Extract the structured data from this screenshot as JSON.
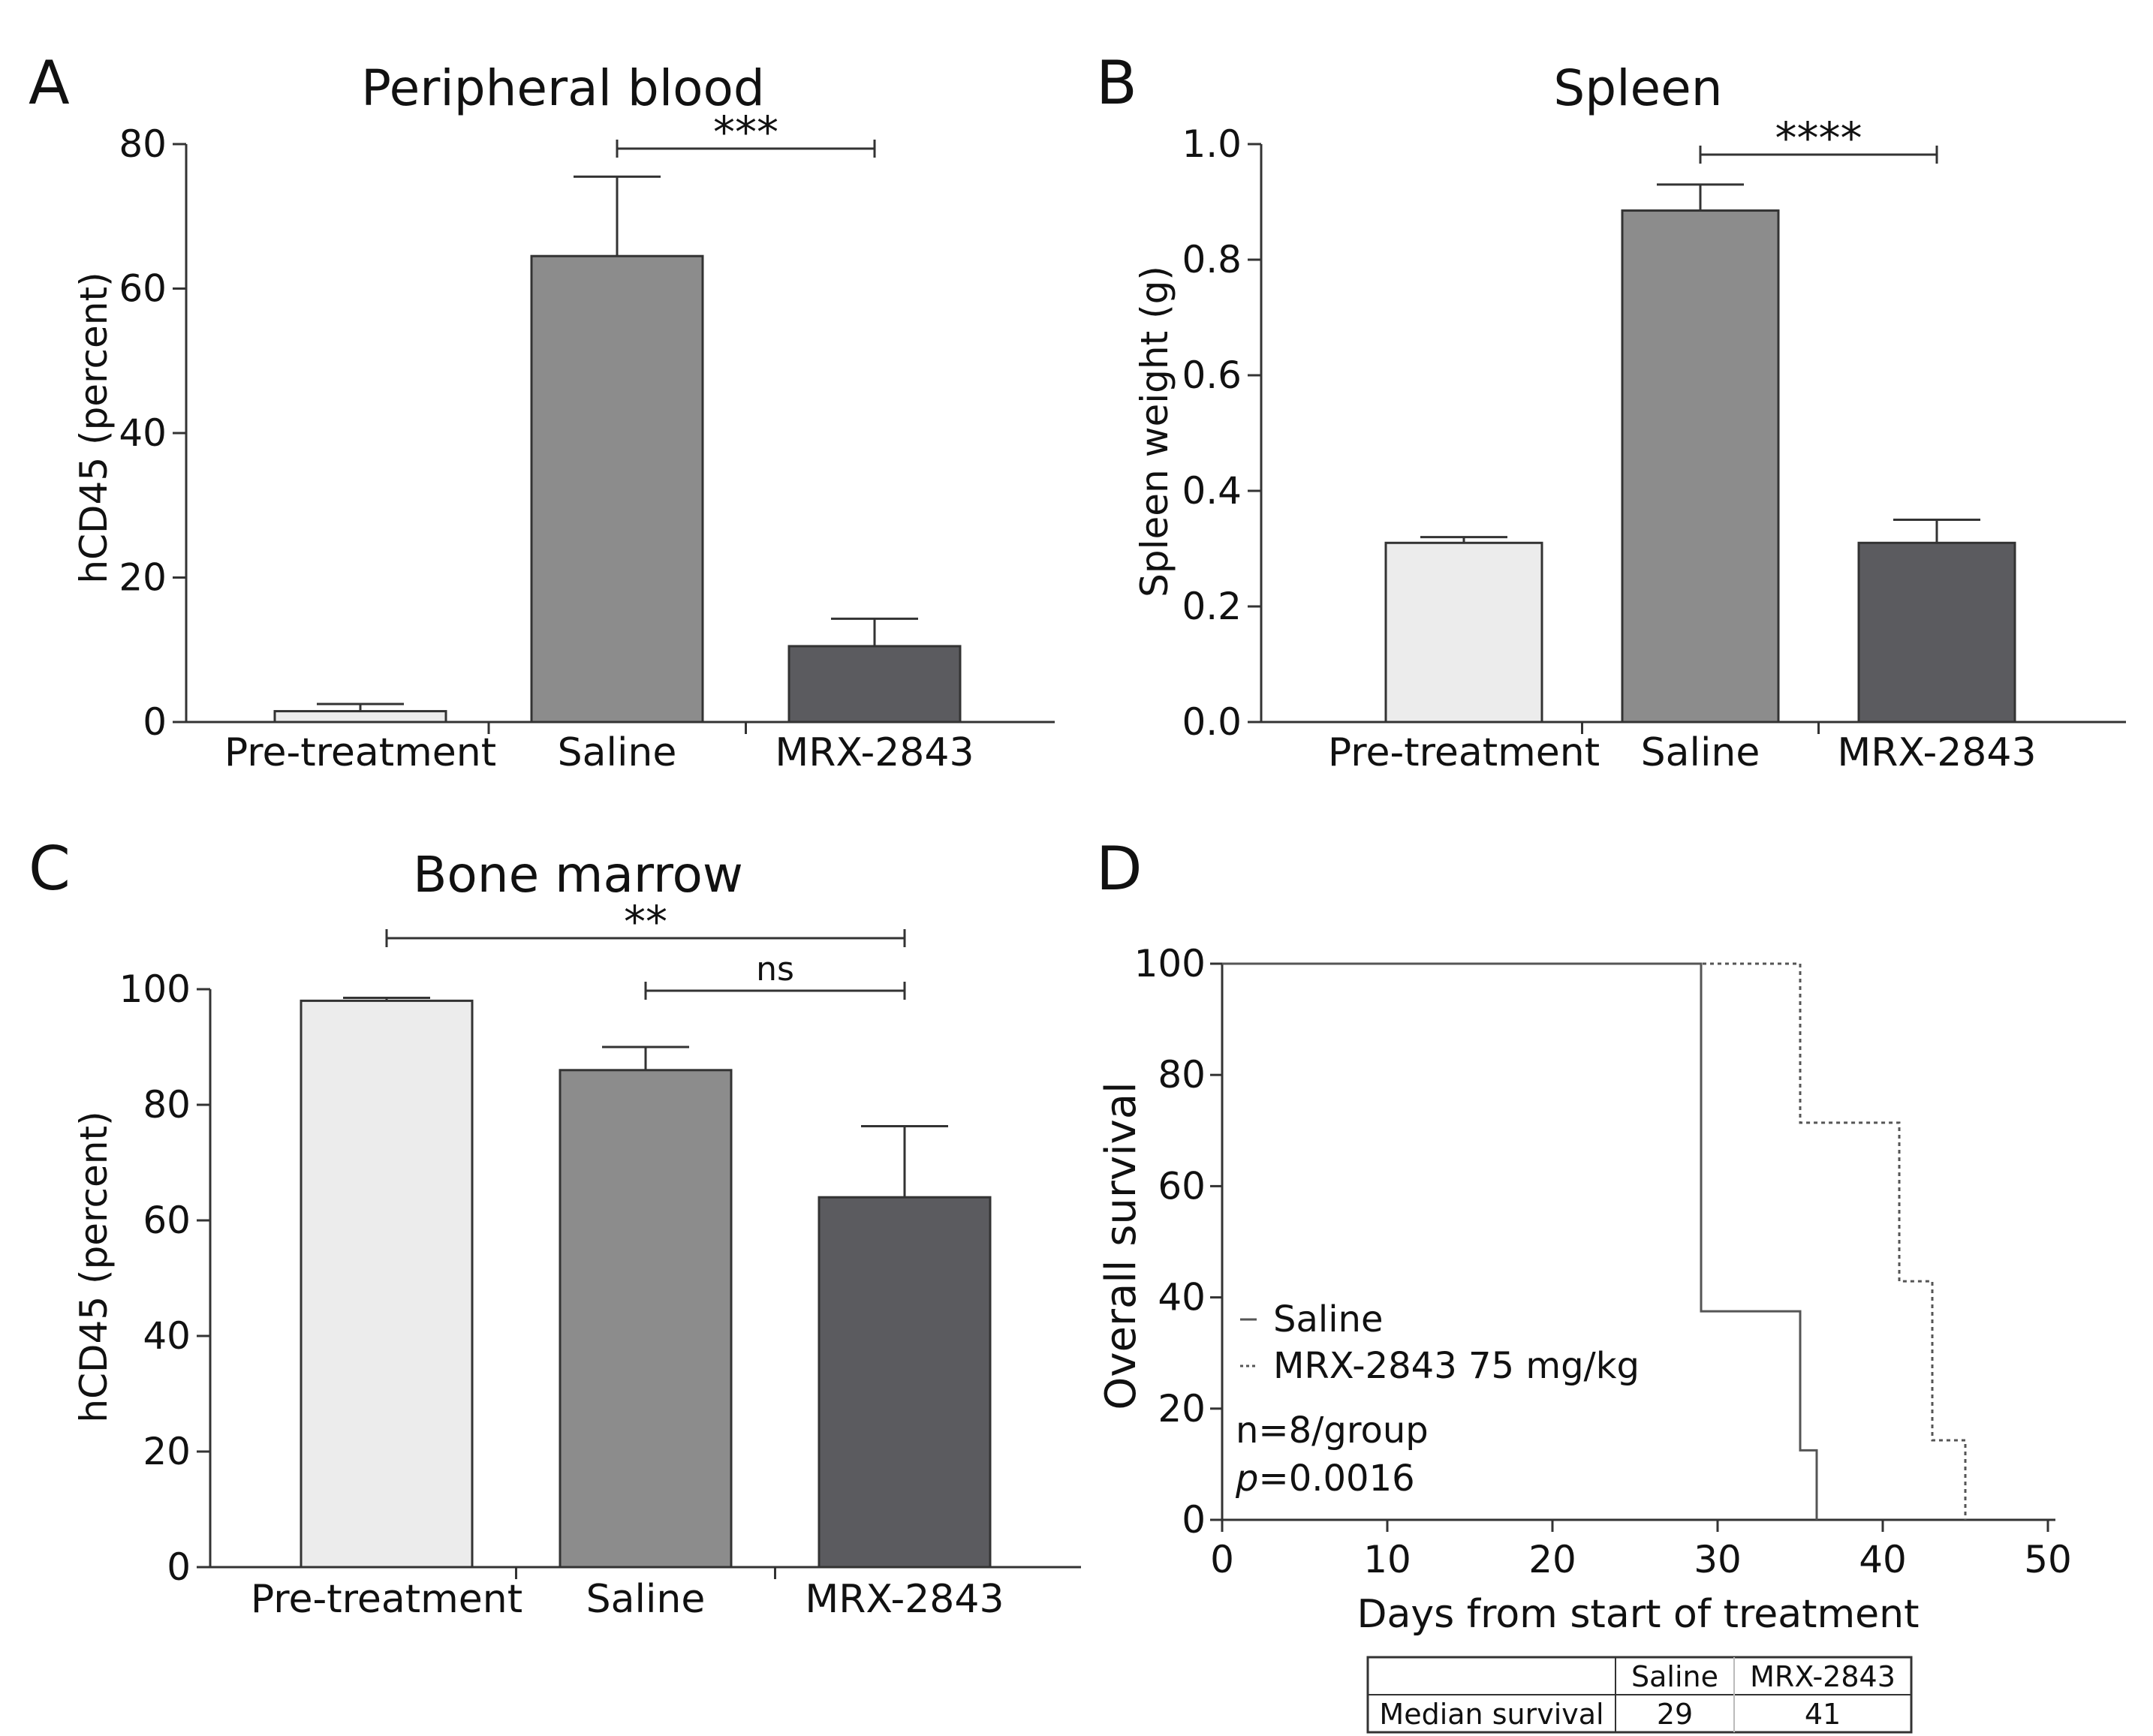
{
  "figure": {
    "colors": {
      "axis": "#333333",
      "pre_treatment_fill": "#ececec",
      "saline_fill": "#8c8c8c",
      "mrx_fill": "#5b5b5f",
      "bar_edge": "#333333",
      "saline_line": "#555555",
      "mrx_line": "#555555",
      "table_border": "#333333"
    }
  },
  "chart_data": [
    {
      "panel": "A",
      "type": "bar",
      "title": "Peripheral blood",
      "xlabel": "",
      "ylabel": "hCD45 (percent)",
      "categories": [
        "Pre-treatment",
        "Saline",
        "MRX-2843"
      ],
      "values": [
        1.5,
        64.5,
        10.5
      ],
      "errors": [
        1.0,
        11.0,
        3.8
      ],
      "ylim": [
        0,
        80
      ],
      "yticks": [
        0,
        20,
        40,
        60,
        80
      ],
      "ytick_labels": [
        "0",
        "20",
        "40",
        "60",
        "80"
      ],
      "significance": [
        {
          "from": 1,
          "to": 2,
          "label": "***"
        }
      ]
    },
    {
      "panel": "B",
      "type": "bar",
      "title": "Spleen",
      "xlabel": "",
      "ylabel": "Spleen weight (g)",
      "categories": [
        "Pre-treatment",
        "Saline",
        "MRX-2843"
      ],
      "values": [
        0.31,
        0.885,
        0.31
      ],
      "errors": [
        0.01,
        0.045,
        0.04
      ],
      "ylim": [
        0,
        1.0
      ],
      "yticks": [
        0,
        0.2,
        0.4,
        0.6,
        0.8,
        1.0
      ],
      "ytick_labels": [
        "0.0",
        "0.2",
        "0.4",
        "0.6",
        "0.8",
        "1.0"
      ],
      "significance": [
        {
          "from": 1,
          "to": 2,
          "label": "****"
        }
      ]
    },
    {
      "panel": "C",
      "type": "bar",
      "title": "Bone marrow",
      "xlabel": "",
      "ylabel": "hCD45 (percent)",
      "categories": [
        "Pre-treatment",
        "Saline",
        "MRX-2843"
      ],
      "values": [
        98,
        86,
        64
      ],
      "errors": [
        0.5,
        4.0,
        12.3
      ],
      "ylim": [
        0,
        100
      ],
      "yticks": [
        0,
        20,
        40,
        60,
        80,
        100
      ],
      "ytick_labels": [
        "0",
        "20",
        "40",
        "60",
        "80",
        "100"
      ],
      "significance": [
        {
          "from": 0,
          "to": 2,
          "label": "**"
        },
        {
          "from": 1,
          "to": 2,
          "label": "ns"
        }
      ]
    },
    {
      "panel": "D",
      "type": "line",
      "title": "",
      "xlabel": "Days from start of treatment",
      "ylabel": "Overall survival",
      "xlim": [
        0,
        50
      ],
      "ylim": [
        0,
        100
      ],
      "xticks": [
        0,
        10,
        20,
        30,
        40,
        50
      ],
      "yticks": [
        0,
        20,
        40,
        60,
        80,
        100
      ],
      "series": [
        {
          "name": "Saline",
          "style": "solid",
          "steps": [
            [
              0,
              100
            ],
            [
              29,
              37.5
            ],
            [
              35,
              12.5
            ],
            [
              36,
              0
            ]
          ]
        },
        {
          "name": "MRX-2843 75 mg/kg",
          "style": "dashed",
          "steps": [
            [
              0,
              100
            ],
            [
              35,
              71.4
            ],
            [
              41,
              42.9
            ],
            [
              43,
              14.3
            ],
            [
              45,
              0
            ]
          ]
        }
      ],
      "annotations": {
        "n_text": "n=8/group",
        "p_symbol": "p",
        "p_value": "=0.0016"
      },
      "median_table": {
        "columns": [
          "Saline",
          "MRX-2843"
        ],
        "row_label": "Median survival",
        "values": [
          "29",
          "41"
        ]
      }
    }
  ]
}
